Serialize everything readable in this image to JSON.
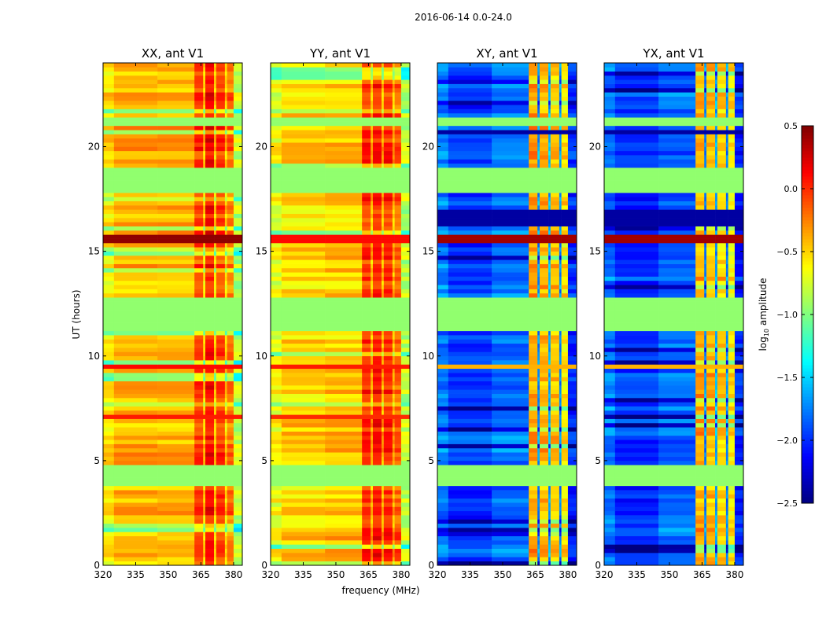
{
  "chart_data": {
    "type": "heatmap",
    "title": "2016-06-14 0.0-24.0",
    "xlabel": "frequency (MHz)",
    "ylabel": "UT (hours)",
    "xlim": [
      320,
      384
    ],
    "ylim": [
      0,
      24
    ],
    "xticks": [
      320,
      335,
      350,
      365,
      380
    ],
    "yticks": [
      0,
      5,
      10,
      15,
      20
    ],
    "colorbar": {
      "label": "log10 amplitude",
      "label_main": "log",
      "label_sub": "10",
      "label_rest": " amplitude",
      "range": [
        -2.5,
        0.5
      ],
      "ticks": [
        "0.5",
        "0.0",
        "−0.5",
        "−1.0",
        "−1.5",
        "−2.0",
        "−2.5"
      ],
      "tick_values": [
        0.5,
        0.0,
        -0.5,
        -1.0,
        -1.5,
        -2.0,
        -2.5
      ],
      "colormap": "jet"
    },
    "flagged_value": -0.95,
    "flagged_hours": [
      [
        3.8,
        4.9
      ],
      [
        11.2,
        12.7
      ],
      [
        17.8,
        19.0
      ],
      [
        21.0,
        21.3
      ]
    ],
    "panels": [
      {
        "title": "XX, ant V1",
        "freq_blocks": [
          [
            320,
            325,
            -0.55
          ],
          [
            325,
            345,
            -0.4
          ],
          [
            345,
            362,
            -0.4
          ],
          [
            362,
            366,
            -0.05
          ],
          [
            366,
            367,
            -0.5
          ],
          [
            367,
            371,
            0.1
          ],
          [
            371,
            372,
            -0.5
          ],
          [
            372,
            376,
            -0.05
          ],
          [
            376,
            377,
            -0.5
          ],
          [
            377,
            380,
            -0.2
          ],
          [
            380,
            384,
            -0.8
          ]
        ],
        "line_hours": [
          [
            15.4,
            15.7,
            0.45
          ],
          [
            0.2,
            0.3,
            0.0
          ],
          [
            5.0,
            5.1,
            0.0
          ],
          [
            9.4,
            9.6,
            0.1
          ],
          [
            7.1,
            7.3,
            0.05
          ],
          [
            19.3,
            19.4,
            0.1
          ]
        ]
      },
      {
        "title": "YY, ant V1",
        "freq_blocks": [
          [
            320,
            325,
            -0.65
          ],
          [
            325,
            345,
            -0.5
          ],
          [
            345,
            362,
            -0.45
          ],
          [
            362,
            366,
            0.0
          ],
          [
            366,
            367,
            -0.4
          ],
          [
            367,
            371,
            0.05
          ],
          [
            371,
            372,
            -0.4
          ],
          [
            372,
            376,
            0.0
          ],
          [
            376,
            377,
            -0.4
          ],
          [
            377,
            380,
            -0.15
          ],
          [
            380,
            384,
            -0.8
          ]
        ],
        "line_hours": [
          [
            15.4,
            15.7,
            0.1
          ],
          [
            0.2,
            0.3,
            0.0
          ],
          [
            5.0,
            5.1,
            0.0
          ],
          [
            9.4,
            9.6,
            0.05
          ],
          [
            7.1,
            7.3,
            0.0
          ],
          [
            19.3,
            19.4,
            0.05
          ]
        ]
      },
      {
        "title": "XY, ant V1",
        "freq_blocks": [
          [
            320,
            325,
            -1.75
          ],
          [
            325,
            345,
            -1.95
          ],
          [
            345,
            362,
            -1.8
          ],
          [
            362,
            366,
            -0.35
          ],
          [
            366,
            367,
            -1.7
          ],
          [
            367,
            371,
            -0.4
          ],
          [
            371,
            372,
            -1.6
          ],
          [
            372,
            376,
            -0.45
          ],
          [
            376,
            377,
            -1.7
          ],
          [
            377,
            380,
            -0.55
          ],
          [
            380,
            384,
            -2.0
          ]
        ],
        "line_hours": [
          [
            15.4,
            15.7,
            0.4
          ],
          [
            0.2,
            0.3,
            0.0
          ],
          [
            5.0,
            5.1,
            0.1
          ],
          [
            16.2,
            16.9,
            -2.4
          ],
          [
            9.4,
            9.6,
            -0.4
          ],
          [
            19.3,
            19.4,
            0.1
          ],
          [
            20.6,
            20.8,
            -2.4
          ]
        ]
      },
      {
        "title": "YX, ant V1",
        "freq_blocks": [
          [
            320,
            325,
            -1.75
          ],
          [
            325,
            345,
            -1.95
          ],
          [
            345,
            362,
            -1.8
          ],
          [
            362,
            366,
            -0.35
          ],
          [
            366,
            367,
            -1.7
          ],
          [
            367,
            371,
            -0.4
          ],
          [
            371,
            372,
            -1.6
          ],
          [
            372,
            376,
            -0.45
          ],
          [
            376,
            377,
            -1.7
          ],
          [
            377,
            380,
            -0.55
          ],
          [
            380,
            384,
            -2.0
          ]
        ],
        "line_hours": [
          [
            15.4,
            15.7,
            0.4
          ],
          [
            0.2,
            0.3,
            0.0
          ],
          [
            5.0,
            5.1,
            0.1
          ],
          [
            16.2,
            16.9,
            -2.4
          ],
          [
            9.4,
            9.6,
            -0.4
          ],
          [
            19.3,
            19.4,
            0.1
          ],
          [
            20.6,
            20.8,
            -2.4
          ]
        ]
      }
    ]
  }
}
